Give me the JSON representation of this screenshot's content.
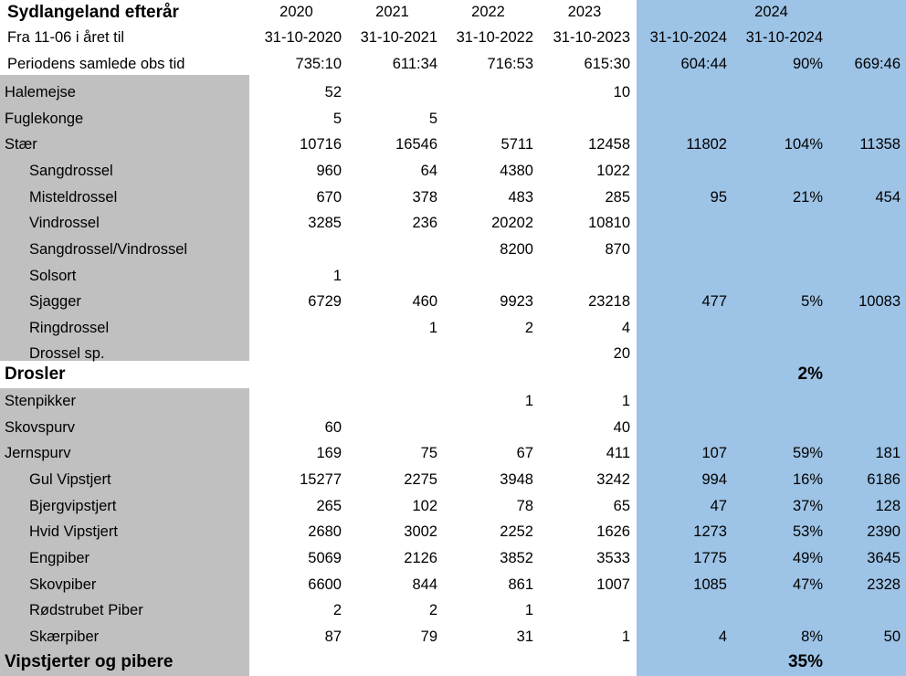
{
  "colors": {
    "gray": "#c0c0c0",
    "blue": "#9dc3e6",
    "white": "#ffffff"
  },
  "header": {
    "title": "Sydlangeland efterår",
    "years": [
      "2020",
      "2021",
      "2022",
      "2023"
    ],
    "year_2024": "2024",
    "period_label": "Fra 11-06 i året til",
    "period_dates": [
      "31-10-2020",
      "31-10-2021",
      "31-10-2022",
      "31-10-2023",
      "31-10-2024",
      "31-10-2024"
    ],
    "obs_label": "Periodens samlede obs tid",
    "obs_values": [
      "735:10",
      "611:34",
      "716:53",
      "615:30",
      "604:44",
      "90%",
      "669:46"
    ]
  },
  "rows": [
    {
      "label": "Halemejse",
      "v": [
        "52",
        "",
        "",
        "10",
        "",
        "",
        ""
      ]
    },
    {
      "label": "Fuglekonge",
      "v": [
        "5",
        "5",
        "",
        "",
        "",
        "",
        ""
      ]
    },
    {
      "label": "Stær",
      "v": [
        "10716",
        "16546",
        "5711",
        "12458",
        "11802",
        "104%",
        "11358"
      ]
    },
    {
      "label": "Sangdrossel",
      "v": [
        "960",
        "64",
        "4380",
        "1022",
        "",
        "",
        ""
      ]
    },
    {
      "label": "Misteldrossel",
      "v": [
        "670",
        "378",
        "483",
        "285",
        "95",
        "21%",
        "454"
      ]
    },
    {
      "label": "Vindrossel",
      "v": [
        "3285",
        "236",
        "20202",
        "10810",
        "",
        "",
        ""
      ]
    },
    {
      "label": "Sangdrossel/Vindrossel",
      "v": [
        "",
        "",
        "8200",
        "870",
        "",
        "",
        ""
      ]
    },
    {
      "label": "Solsort",
      "v": [
        "1",
        "",
        "",
        "",
        "",
        "",
        ""
      ]
    },
    {
      "label": "Sjagger",
      "v": [
        "6729",
        "460",
        "9923",
        "23218",
        "477",
        "5%",
        "10083"
      ]
    },
    {
      "label": "Ringdrossel",
      "v": [
        "",
        "1",
        "2",
        "4",
        "",
        "",
        ""
      ]
    },
    {
      "label": "Drossel sp.",
      "v": [
        "",
        "",
        "",
        "20",
        "",
        "",
        ""
      ]
    },
    {
      "label": "Drosler",
      "v": [
        "",
        "",
        "",
        "",
        "",
        "2%",
        ""
      ]
    },
    {
      "label": "Stenpikker",
      "v": [
        "",
        "",
        "1",
        "1",
        "",
        "",
        ""
      ]
    },
    {
      "label": "Skovspurv",
      "v": [
        "60",
        "",
        "",
        "40",
        "",
        "",
        ""
      ]
    },
    {
      "label": "Jernspurv",
      "v": [
        "169",
        "75",
        "67",
        "411",
        "107",
        "59%",
        "181"
      ]
    },
    {
      "label": "Gul Vipstjert",
      "v": [
        "15277",
        "2275",
        "3948",
        "3242",
        "994",
        "16%",
        "6186"
      ]
    },
    {
      "label": "Bjergvipstjert",
      "v": [
        "265",
        "102",
        "78",
        "65",
        "47",
        "37%",
        "128"
      ]
    },
    {
      "label": "Hvid Vipstjert",
      "v": [
        "2680",
        "3002",
        "2252",
        "1626",
        "1273",
        "53%",
        "2390"
      ]
    },
    {
      "label": "Engpiber",
      "v": [
        "5069",
        "2126",
        "3852",
        "3533",
        "1775",
        "49%",
        "3645"
      ]
    },
    {
      "label": "Skovpiber",
      "v": [
        "6600",
        "844",
        "861",
        "1007",
        "1085",
        "47%",
        "2328"
      ]
    },
    {
      "label": "Rødstrubet Piber",
      "v": [
        "2",
        "2",
        "1",
        "",
        "",
        "",
        ""
      ]
    },
    {
      "label": "Skærpiber",
      "v": [
        "87",
        "79",
        "31",
        "1",
        "4",
        "8%",
        "50"
      ]
    },
    {
      "label": "Vipstjerter og pibere",
      "v": [
        "",
        "",
        "",
        "",
        "",
        "35%",
        ""
      ]
    }
  ]
}
